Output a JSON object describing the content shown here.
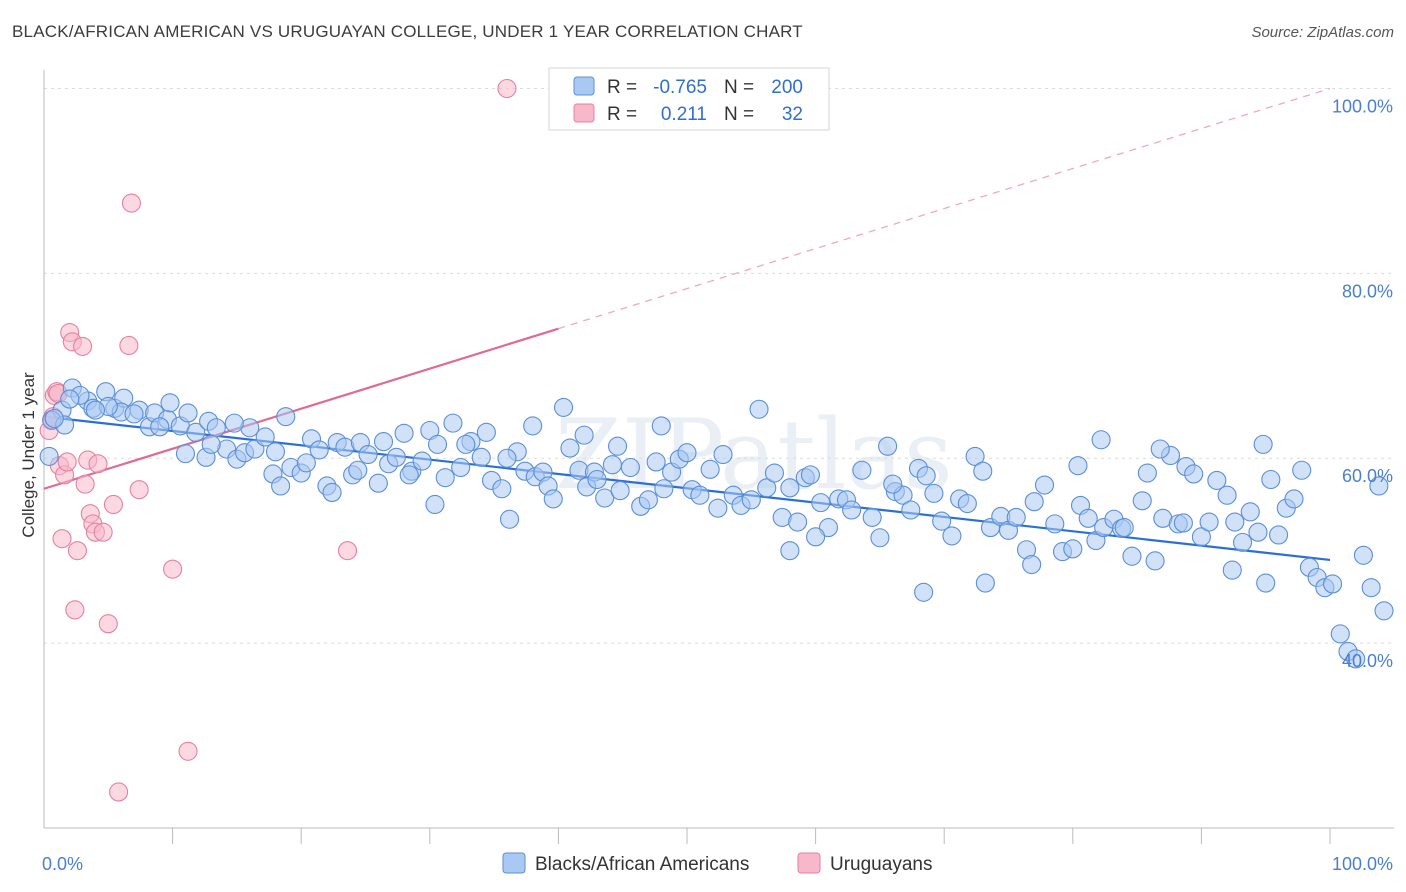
{
  "title": "BLACK/AFRICAN AMERICAN VS URUGUAYAN COLLEGE, UNDER 1 YEAR CORRELATION CHART",
  "source": "Source: ZipAtlas.com",
  "watermark": "ZIPatlas",
  "legend": {
    "rows": [
      {
        "r_label": "R =",
        "r_value": "-0.765",
        "n_label": "N =",
        "n_value": "200",
        "color": "#a9c8f2",
        "stroke": "#5b8fd8"
      },
      {
        "r_label": "R =",
        "r_value": "0.211",
        "n_label": "N =",
        "n_value": "32",
        "color": "#f7b8cb",
        "stroke": "#e5819f"
      }
    ]
  },
  "bottom_legend": [
    {
      "label": "Blacks/African Americans",
      "color": "#a9c8f2",
      "stroke": "#5b8fd8"
    },
    {
      "label": "Uruguayans",
      "color": "#f7b8cb",
      "stroke": "#e5819f"
    }
  ],
  "chart_data": {
    "type": "scatter",
    "title": "BLACK/AFRICAN AMERICAN VS URUGUAYAN COLLEGE, UNDER 1 YEAR CORRELATION CHART",
    "xlabel": "",
    "ylabel": "College, Under 1 year",
    "x_tick_labels": [
      "0.0%",
      "100.0%"
    ],
    "y_tick_labels": [
      "40.0%",
      "60.0%",
      "80.0%",
      "100.0%"
    ],
    "xlim": [
      0,
      100
    ],
    "ylim": [
      20,
      102
    ],
    "grid": true,
    "legend_position": "top-center",
    "series": [
      {
        "name": "Blacks/African Americans",
        "color": "#5b8fd8",
        "fill": "#a9c8f2",
        "trend": {
          "x": [
            0,
            100
          ],
          "y": [
            64.5,
            49.0
          ],
          "style": "solid",
          "color": "#2a6fd6"
        },
        "points": [
          [
            0.4,
            60.2
          ],
          [
            1.4,
            65.2
          ],
          [
            0.6,
            64.1
          ],
          [
            2.2,
            67.6
          ],
          [
            3.4,
            66.2
          ],
          [
            2.8,
            66.8
          ],
          [
            3.8,
            65.4
          ],
          [
            4.8,
            67.2
          ],
          [
            5.5,
            65.4
          ],
          [
            6.2,
            66.5
          ],
          [
            6.0,
            65.0
          ],
          [
            7.4,
            65.2
          ],
          [
            8.2,
            63.4
          ],
          [
            8.6,
            64.9
          ],
          [
            9.6,
            64.2
          ],
          [
            10.6,
            63.5
          ],
          [
            11.2,
            64.9
          ],
          [
            11.8,
            62.8
          ],
          [
            12.8,
            64.0
          ],
          [
            13.4,
            63.3
          ],
          [
            12.6,
            60.1
          ],
          [
            14.2,
            61.0
          ],
          [
            15.0,
            59.9
          ],
          [
            15.6,
            60.6
          ],
          [
            16.4,
            61.0
          ],
          [
            17.2,
            62.3
          ],
          [
            17.8,
            58.3
          ],
          [
            18.0,
            60.7
          ],
          [
            19.2,
            59.0
          ],
          [
            18.8,
            64.5
          ],
          [
            20.0,
            58.4
          ],
          [
            20.8,
            62.1
          ],
          [
            21.4,
            60.9
          ],
          [
            22.0,
            57.0
          ],
          [
            22.8,
            61.7
          ],
          [
            23.4,
            61.2
          ],
          [
            24.0,
            58.2
          ],
          [
            24.6,
            61.7
          ],
          [
            25.2,
            60.4
          ],
          [
            26.0,
            57.3
          ],
          [
            26.8,
            59.4
          ],
          [
            27.4,
            60.1
          ],
          [
            28.0,
            62.7
          ],
          [
            28.6,
            58.6
          ],
          [
            29.4,
            59.7
          ],
          [
            30.0,
            63.0
          ],
          [
            30.6,
            61.5
          ],
          [
            31.2,
            57.9
          ],
          [
            31.8,
            63.8
          ],
          [
            32.4,
            59.0
          ],
          [
            33.2,
            61.8
          ],
          [
            34.0,
            60.1
          ],
          [
            34.8,
            57.6
          ],
          [
            35.6,
            56.7
          ],
          [
            36.2,
            53.4
          ],
          [
            36.8,
            60.7
          ],
          [
            37.4,
            58.6
          ],
          [
            38.2,
            58.0
          ],
          [
            38.8,
            58.5
          ],
          [
            39.2,
            57.0
          ],
          [
            39.6,
            55.6
          ],
          [
            40.4,
            65.5
          ],
          [
            40.9,
            61.1
          ],
          [
            41.6,
            58.7
          ],
          [
            42.2,
            56.9
          ],
          [
            42.8,
            58.5
          ],
          [
            43.6,
            55.7
          ],
          [
            44.2,
            59.3
          ],
          [
            44.8,
            56.5
          ],
          [
            45.6,
            59.0
          ],
          [
            46.4,
            54.8
          ],
          [
            47.0,
            55.5
          ],
          [
            47.6,
            59.6
          ],
          [
            48.2,
            56.7
          ],
          [
            48.8,
            58.5
          ],
          [
            49.4,
            59.9
          ],
          [
            50.0,
            60.6
          ],
          [
            50.4,
            56.6
          ],
          [
            51.0,
            56.0
          ],
          [
            51.8,
            58.8
          ],
          [
            52.4,
            54.6
          ],
          [
            52.8,
            60.4
          ],
          [
            53.6,
            56.0
          ],
          [
            54.2,
            54.9
          ],
          [
            55.0,
            55.5
          ],
          [
            55.6,
            65.3
          ],
          [
            56.2,
            56.8
          ],
          [
            56.8,
            58.4
          ],
          [
            57.4,
            53.6
          ],
          [
            58.0,
            56.8
          ],
          [
            58.6,
            53.1
          ],
          [
            59.2,
            57.9
          ],
          [
            59.6,
            58.2
          ],
          [
            60.4,
            55.2
          ],
          [
            61.0,
            52.5
          ],
          [
            61.8,
            55.6
          ],
          [
            62.4,
            55.5
          ],
          [
            62.8,
            54.4
          ],
          [
            63.6,
            58.7
          ],
          [
            64.4,
            53.6
          ],
          [
            65.0,
            51.4
          ],
          [
            65.6,
            61.3
          ],
          [
            66.2,
            56.4
          ],
          [
            66.8,
            56.0
          ],
          [
            67.4,
            54.4
          ],
          [
            68.0,
            58.9
          ],
          [
            68.6,
            58.1
          ],
          [
            69.2,
            56.2
          ],
          [
            69.8,
            53.2
          ],
          [
            70.6,
            51.6
          ],
          [
            71.2,
            55.6
          ],
          [
            71.8,
            55.1
          ],
          [
            72.4,
            60.2
          ],
          [
            73.0,
            58.6
          ],
          [
            73.6,
            52.5
          ],
          [
            74.4,
            53.7
          ],
          [
            75.0,
            52.2
          ],
          [
            75.6,
            53.6
          ],
          [
            76.4,
            50.1
          ],
          [
            77.0,
            55.3
          ],
          [
            77.8,
            57.1
          ],
          [
            78.6,
            52.9
          ],
          [
            79.2,
            49.9
          ],
          [
            80.0,
            50.2
          ],
          [
            80.6,
            54.9
          ],
          [
            81.2,
            53.5
          ],
          [
            81.8,
            51.1
          ],
          [
            82.4,
            52.5
          ],
          [
            83.2,
            53.4
          ],
          [
            83.8,
            52.4
          ],
          [
            84.6,
            49.4
          ],
          [
            85.4,
            55.4
          ],
          [
            85.8,
            58.4
          ],
          [
            86.4,
            48.9
          ],
          [
            87.0,
            53.5
          ],
          [
            87.6,
            60.3
          ],
          [
            88.2,
            52.9
          ],
          [
            88.8,
            59.1
          ],
          [
            89.4,
            58.3
          ],
          [
            90.0,
            51.5
          ],
          [
            90.6,
            53.1
          ],
          [
            91.2,
            57.6
          ],
          [
            92.0,
            56.0
          ],
          [
            92.6,
            53.1
          ],
          [
            93.2,
            50.9
          ],
          [
            93.8,
            54.2
          ],
          [
            94.4,
            52.0
          ],
          [
            94.8,
            61.5
          ],
          [
            95.4,
            57.7
          ],
          [
            96.0,
            51.7
          ],
          [
            96.6,
            54.6
          ],
          [
            97.2,
            55.6
          ],
          [
            97.8,
            58.7
          ],
          [
            98.4,
            48.2
          ],
          [
            99.0,
            47.1
          ],
          [
            99.6,
            46.0
          ],
          [
            100.2,
            46.4
          ],
          [
            100.8,
            41.0
          ],
          [
            101.4,
            39.1
          ],
          [
            102.0,
            38.3
          ],
          [
            102.6,
            49.5
          ],
          [
            103.2,
            46.0
          ],
          [
            103.8,
            57.0
          ],
          [
            104.2,
            43.5
          ],
          [
            82.2,
            62.0
          ],
          [
            68.4,
            45.5
          ],
          [
            73.2,
            46.5
          ],
          [
            76.8,
            48.5
          ],
          [
            86.8,
            61.0
          ],
          [
            88.6,
            53.0
          ],
          [
            84.0,
            52.5
          ],
          [
            80.4,
            59.2
          ],
          [
            66.0,
            57.2
          ],
          [
            60.0,
            51.5
          ],
          [
            58.0,
            50.0
          ],
          [
            92.4,
            47.9
          ],
          [
            95.0,
            46.5
          ],
          [
            48.0,
            63.5
          ],
          [
            44.6,
            61.3
          ],
          [
            43.0,
            57.7
          ],
          [
            42.0,
            62.5
          ],
          [
            38.0,
            63.5
          ],
          [
            36.0,
            60.0
          ],
          [
            34.4,
            62.8
          ],
          [
            32.8,
            61.5
          ],
          [
            30.4,
            55.0
          ],
          [
            28.4,
            58.2
          ],
          [
            26.4,
            61.8
          ],
          [
            24.4,
            58.7
          ],
          [
            22.4,
            56.3
          ],
          [
            20.4,
            59.5
          ],
          [
            18.4,
            57.0
          ],
          [
            16.0,
            63.3
          ],
          [
            14.8,
            63.8
          ],
          [
            13.0,
            61.5
          ],
          [
            11.0,
            60.5
          ],
          [
            9.8,
            66.0
          ],
          [
            9.0,
            63.4
          ],
          [
            7.0,
            64.8
          ],
          [
            5.0,
            65.6
          ],
          [
            4.0,
            65.2
          ],
          [
            2.0,
            66.4
          ],
          [
            1.6,
            63.6
          ],
          [
            0.8,
            64.3
          ]
        ]
      },
      {
        "name": "Uruguayans",
        "color": "#e5819f",
        "fill": "#f7b8cb",
        "trend": {
          "x": [
            0,
            100
          ],
          "y": [
            56.7,
            100.0
          ],
          "solid_until_x": 40,
          "style": "solid-then-dashed",
          "color": "#e06a92"
        },
        "points": [
          [
            0.4,
            63.0
          ],
          [
            0.6,
            64.2
          ],
          [
            0.8,
            66.8
          ],
          [
            1.0,
            67.2
          ],
          [
            1.2,
            59.2
          ],
          [
            1.4,
            51.3
          ],
          [
            1.6,
            58.2
          ],
          [
            1.8,
            59.6
          ],
          [
            2.0,
            73.6
          ],
          [
            2.2,
            72.6
          ],
          [
            2.4,
            43.6
          ],
          [
            2.6,
            50.0
          ],
          [
            3.0,
            72.1
          ],
          [
            3.2,
            57.2
          ],
          [
            3.4,
            59.8
          ],
          [
            3.6,
            54.0
          ],
          [
            3.8,
            52.9
          ],
          [
            4.0,
            52.0
          ],
          [
            4.2,
            59.4
          ],
          [
            4.6,
            52.0
          ],
          [
            5.0,
            42.1
          ],
          [
            5.4,
            55.0
          ],
          [
            5.8,
            23.9
          ],
          [
            6.6,
            72.2
          ],
          [
            6.8,
            87.6
          ],
          [
            7.4,
            56.6
          ],
          [
            10.0,
            48.0
          ],
          [
            11.2,
            28.3
          ],
          [
            23.6,
            50.0
          ],
          [
            36.0,
            100.0
          ],
          [
            0.7,
            64.5
          ],
          [
            1.1,
            67.0
          ]
        ]
      }
    ]
  }
}
